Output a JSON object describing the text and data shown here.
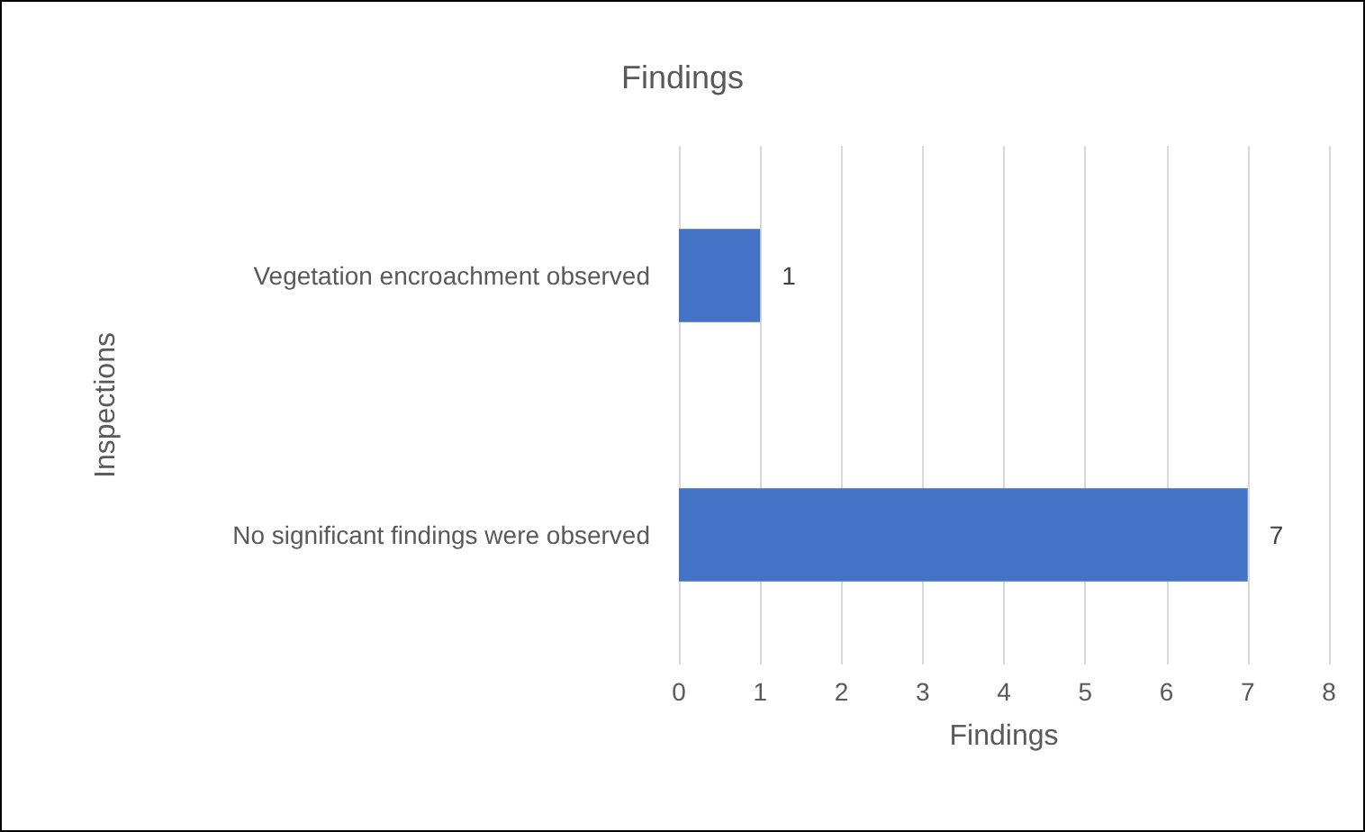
{
  "chart_data": {
    "type": "bar",
    "orientation": "horizontal",
    "title": "Findings",
    "xlabel": "Findings",
    "ylabel": "Inspections",
    "categories": [
      "Vegetation encroachment observed",
      "No significant findings were observed"
    ],
    "values": [
      1,
      7
    ],
    "color": "#4472c4",
    "xlim": [
      0,
      8
    ],
    "xticks": [
      0,
      1,
      2,
      3,
      4,
      5,
      6,
      7,
      8
    ],
    "grid": "x",
    "data_labels": true
  }
}
